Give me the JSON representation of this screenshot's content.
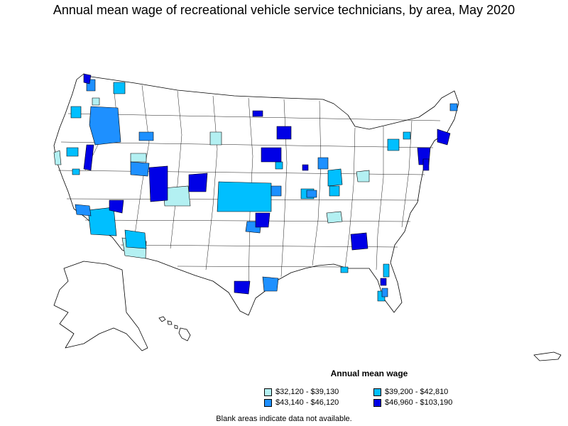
{
  "title": "Annual mean wage of recreational vehicle service technicians, by area, May 2020",
  "legend": {
    "title": "Annual mean wage",
    "items": [
      {
        "label": "$32,120 - $39,130",
        "color": "#b3f0f2"
      },
      {
        "label": "$39,200 - $42,810",
        "color": "#00bfff"
      },
      {
        "label": "$43,140 - $46,120",
        "color": "#1e90ff"
      },
      {
        "label": "$46,960 - $103,190",
        "color": "#0000e6"
      }
    ]
  },
  "footnote": "Blank areas indicate data not available.",
  "colors": {
    "no_data": "#ffffff",
    "border": "#000000"
  }
}
